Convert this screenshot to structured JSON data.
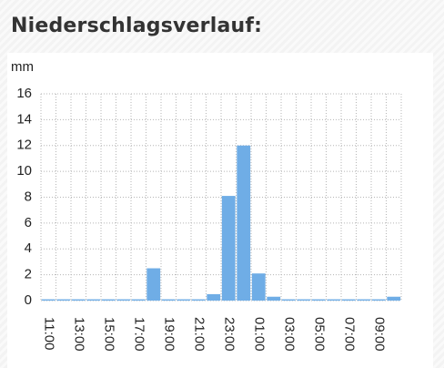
{
  "chart_data": {
    "type": "bar",
    "title": "Niederschlagsverlauf:",
    "ylabel": "mm",
    "categories": [
      "11:00",
      null,
      "13:00",
      null,
      "15:00",
      null,
      "17:00",
      null,
      "19:00",
      null,
      "21:00",
      null,
      "23:00",
      null,
      "01:00",
      null,
      "03:00",
      null,
      "05:00",
      null,
      "07:00",
      null,
      "09:00",
      null
    ],
    "values": [
      0.1,
      0.1,
      0.1,
      0.1,
      0.1,
      0.1,
      0.1,
      2.5,
      0.1,
      0.1,
      0.1,
      0.5,
      8.1,
      12,
      2.1,
      0.3,
      0.1,
      0.1,
      0.1,
      0.1,
      0.1,
      0.1,
      0.1,
      0.3
    ],
    "color": "#6fade6",
    "ylim": [
      0,
      16
    ],
    "yticks": [
      0,
      2,
      4,
      6,
      8,
      10,
      12,
      14,
      16
    ],
    "grid": true
  }
}
